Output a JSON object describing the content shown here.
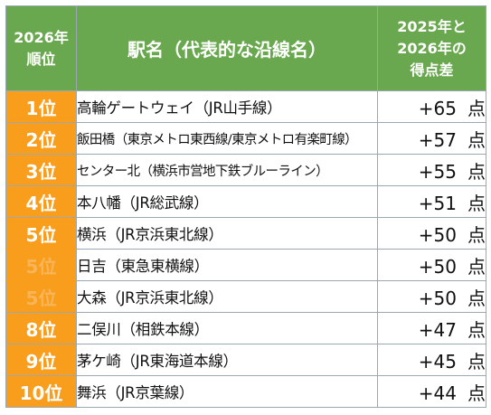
{
  "header": {
    "rank_line1": "2026年",
    "rank_line2": "順位",
    "station": "駅名（代表的な沿線名）",
    "diff_line1": "2025年と",
    "diff_line2": "2026年の",
    "diff_line3": "得点差"
  },
  "rows": [
    {
      "rank": "1位",
      "station": "高輪ゲートウェイ（JR山手線）",
      "diff": "+65",
      "unit": "点"
    },
    {
      "rank": "2位",
      "station": "飯田橋（東京メトロ東西線/東京メトロ有楽町線）",
      "diff": "+57",
      "unit": "点"
    },
    {
      "rank": "3位",
      "station": "センター北（横浜市営地下鉄ブルーライン）",
      "diff": "+55",
      "unit": "点"
    },
    {
      "rank": "4位",
      "station": "本八幡（JR総武線）",
      "diff": "+51",
      "unit": "点"
    },
    {
      "rank": "5位",
      "station": "横浜（JR京浜東北線）",
      "diff": "+50",
      "unit": "点"
    },
    {
      "rank": "5位",
      "station": "日吉（東急東横線）",
      "diff": "+50",
      "unit": "点"
    },
    {
      "rank": "5位",
      "station": "大森（JR京浜東北線）",
      "diff": "+50",
      "unit": "点"
    },
    {
      "rank": "8位",
      "station": "二俣川（相鉄本線）",
      "diff": "+47",
      "unit": "点"
    },
    {
      "rank": "9位",
      "station": "茅ケ崎（JR東海道本線）",
      "diff": "+45",
      "unit": "点"
    },
    {
      "rank": "10位",
      "station": "舞浜（JR京葉線）",
      "diff": "+44",
      "unit": "点"
    }
  ]
}
